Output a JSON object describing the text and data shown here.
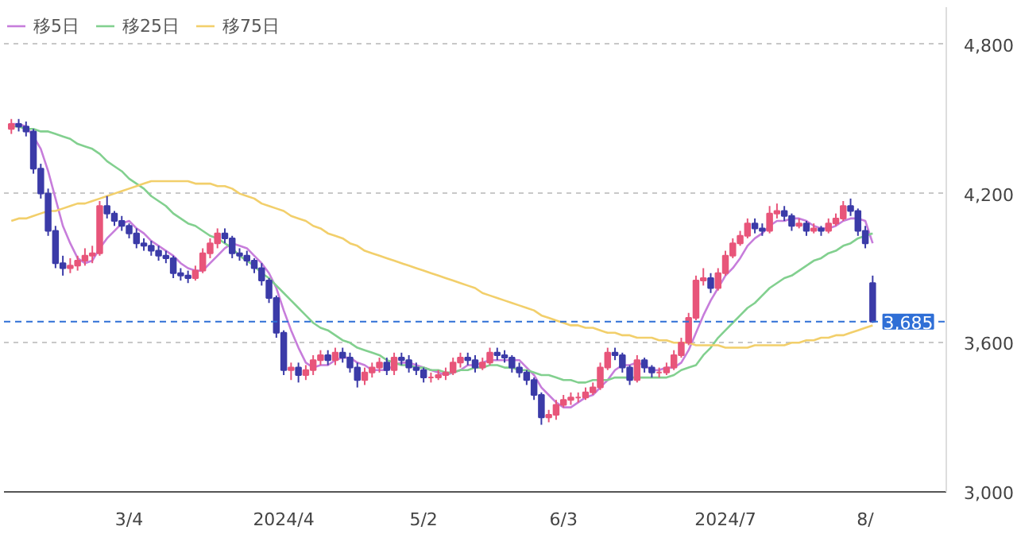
{
  "chart_data": {
    "type": "candlestick",
    "categories": [
      null,
      null,
      null,
      null,
      null,
      null,
      null,
      null,
      null,
      null,
      null,
      null,
      null,
      null,
      null,
      null,
      "3/4",
      null,
      null,
      null,
      null,
      null,
      null,
      null,
      null,
      null,
      null,
      null,
      null,
      null,
      null,
      null,
      null,
      null,
      null,
      null,
      null,
      "2024/4",
      null,
      null,
      null,
      null,
      null,
      null,
      null,
      null,
      null,
      null,
      null,
      null,
      null,
      null,
      null,
      null,
      null,
      null,
      "5/2",
      null,
      null,
      null,
      null,
      null,
      null,
      null,
      null,
      null,
      null,
      null,
      null,
      null,
      null,
      null,
      null,
      null,
      null,
      "6/3",
      null,
      null,
      null,
      null,
      null,
      null,
      null,
      null,
      null,
      null,
      null,
      null,
      null,
      null,
      null,
      null,
      null,
      null,
      null,
      null,
      null,
      "2024/7",
      null,
      null,
      null,
      null,
      null,
      null,
      null,
      null,
      null,
      null,
      null,
      null,
      null,
      null,
      null,
      null,
      null,
      null,
      "8/",
      null
    ],
    "ohlc": [
      [
        4460,
        4500,
        4440,
        4480
      ],
      [
        4480,
        4500,
        4450,
        4470
      ],
      [
        4470,
        4490,
        4430,
        4450
      ],
      [
        4450,
        4460,
        4280,
        4300
      ],
      [
        4300,
        4320,
        4180,
        4200
      ],
      [
        4200,
        4220,
        4030,
        4050
      ],
      [
        4050,
        4070,
        3900,
        3920
      ],
      [
        3920,
        3950,
        3870,
        3900
      ],
      [
        3900,
        3940,
        3880,
        3910
      ],
      [
        3910,
        3950,
        3890,
        3930
      ],
      [
        3930,
        3980,
        3910,
        3950
      ],
      [
        3950,
        3990,
        3920,
        3960
      ],
      [
        3960,
        4170,
        3950,
        4150
      ],
      [
        4150,
        4190,
        4100,
        4120
      ],
      [
        4120,
        4130,
        4070,
        4090
      ],
      [
        4090,
        4110,
        4050,
        4070
      ],
      [
        4070,
        4080,
        4020,
        4040
      ],
      [
        4040,
        4060,
        3980,
        4000
      ],
      [
        4000,
        4020,
        3970,
        3990
      ],
      [
        3990,
        4010,
        3950,
        3970
      ],
      [
        3970,
        3990,
        3930,
        3950
      ],
      [
        3950,
        3970,
        3920,
        3940
      ],
      [
        3940,
        3950,
        3860,
        3880
      ],
      [
        3880,
        3900,
        3850,
        3870
      ],
      [
        3870,
        3890,
        3840,
        3860
      ],
      [
        3860,
        3910,
        3850,
        3890
      ],
      [
        3890,
        3980,
        3880,
        3960
      ],
      [
        3960,
        4020,
        3940,
        4000
      ],
      [
        4000,
        4060,
        3980,
        4040
      ],
      [
        4040,
        4060,
        4000,
        4020
      ],
      [
        4020,
        4030,
        3940,
        3960
      ],
      [
        3960,
        3980,
        3930,
        3950
      ],
      [
        3950,
        3970,
        3910,
        3930
      ],
      [
        3930,
        3940,
        3880,
        3900
      ],
      [
        3900,
        3920,
        3830,
        3850
      ],
      [
        3850,
        3860,
        3760,
        3780
      ],
      [
        3780,
        3790,
        3620,
        3640
      ],
      [
        3640,
        3650,
        3470,
        3490
      ],
      [
        3490,
        3520,
        3450,
        3500
      ],
      [
        3500,
        3520,
        3440,
        3470
      ],
      [
        3470,
        3510,
        3450,
        3490
      ],
      [
        3490,
        3550,
        3470,
        3530
      ],
      [
        3530,
        3570,
        3510,
        3550
      ],
      [
        3550,
        3570,
        3510,
        3530
      ],
      [
        3530,
        3580,
        3510,
        3560
      ],
      [
        3560,
        3580,
        3520,
        3540
      ],
      [
        3540,
        3560,
        3480,
        3500
      ],
      [
        3500,
        3520,
        3420,
        3450
      ],
      [
        3450,
        3500,
        3430,
        3480
      ],
      [
        3480,
        3520,
        3460,
        3500
      ],
      [
        3500,
        3540,
        3480,
        3520
      ],
      [
        3520,
        3540,
        3470,
        3490
      ],
      [
        3490,
        3560,
        3470,
        3540
      ],
      [
        3540,
        3560,
        3510,
        3530
      ],
      [
        3530,
        3550,
        3480,
        3500
      ],
      [
        3500,
        3520,
        3470,
        3490
      ],
      [
        3490,
        3500,
        3440,
        3460
      ],
      [
        3460,
        3480,
        3440,
        3460
      ],
      [
        3460,
        3490,
        3450,
        3470
      ],
      [
        3470,
        3500,
        3450,
        3480
      ],
      [
        3480,
        3540,
        3470,
        3520
      ],
      [
        3520,
        3560,
        3500,
        3540
      ],
      [
        3540,
        3560,
        3510,
        3530
      ],
      [
        3530,
        3550,
        3480,
        3500
      ],
      [
        3500,
        3540,
        3490,
        3520
      ],
      [
        3520,
        3580,
        3510,
        3560
      ],
      [
        3560,
        3580,
        3530,
        3550
      ],
      [
        3550,
        3570,
        3520,
        3540
      ],
      [
        3540,
        3550,
        3480,
        3500
      ],
      [
        3500,
        3520,
        3460,
        3480
      ],
      [
        3480,
        3490,
        3430,
        3450
      ],
      [
        3450,
        3460,
        3370,
        3390
      ],
      [
        3390,
        3400,
        3270,
        3300
      ],
      [
        3300,
        3330,
        3280,
        3310
      ],
      [
        3310,
        3370,
        3290,
        3350
      ],
      [
        3350,
        3390,
        3340,
        3370
      ],
      [
        3370,
        3400,
        3350,
        3380
      ],
      [
        3380,
        3400,
        3360,
        3380
      ],
      [
        3380,
        3420,
        3370,
        3400
      ],
      [
        3400,
        3440,
        3390,
        3420
      ],
      [
        3420,
        3520,
        3410,
        3500
      ],
      [
        3500,
        3580,
        3490,
        3560
      ],
      [
        3560,
        3580,
        3530,
        3550
      ],
      [
        3550,
        3560,
        3480,
        3500
      ],
      [
        3500,
        3510,
        3430,
        3450
      ],
      [
        3450,
        3550,
        3440,
        3530
      ],
      [
        3530,
        3540,
        3480,
        3500
      ],
      [
        3500,
        3510,
        3460,
        3480
      ],
      [
        3480,
        3500,
        3460,
        3480
      ],
      [
        3480,
        3520,
        3470,
        3500
      ],
      [
        3500,
        3570,
        3490,
        3550
      ],
      [
        3550,
        3620,
        3540,
        3600
      ],
      [
        3600,
        3720,
        3590,
        3700
      ],
      [
        3700,
        3870,
        3690,
        3850
      ],
      [
        3850,
        3900,
        3830,
        3860
      ],
      [
        3860,
        3880,
        3800,
        3820
      ],
      [
        3820,
        3900,
        3810,
        3880
      ],
      [
        3880,
        3970,
        3870,
        3950
      ],
      [
        3950,
        4020,
        3940,
        4000
      ],
      [
        4000,
        4050,
        3990,
        4030
      ],
      [
        4030,
        4100,
        4020,
        4080
      ],
      [
        4080,
        4100,
        4040,
        4060
      ],
      [
        4060,
        4080,
        4030,
        4050
      ],
      [
        4050,
        4150,
        4040,
        4120
      ],
      [
        4120,
        4160,
        4100,
        4130
      ],
      [
        4130,
        4150,
        4090,
        4110
      ],
      [
        4110,
        4120,
        4050,
        4070
      ],
      [
        4070,
        4100,
        4060,
        4080
      ],
      [
        4080,
        4090,
        4030,
        4050
      ],
      [
        4050,
        4080,
        4040,
        4060
      ],
      [
        4060,
        4070,
        4030,
        4050
      ],
      [
        4050,
        4100,
        4040,
        4080
      ],
      [
        4080,
        4120,
        4070,
        4100
      ],
      [
        4100,
        4170,
        4090,
        4150
      ],
      [
        4150,
        4180,
        4110,
        4130
      ],
      [
        4130,
        4140,
        4030,
        4050
      ],
      [
        4050,
        4070,
        3980,
        4000
      ],
      [
        3840,
        3870,
        3680,
        3685
      ]
    ],
    "series": [
      {
        "name": "移5日",
        "type": "line",
        "color": "#c77ddb",
        "values": [
          4480,
          4480,
          4470,
          4430,
          4380,
          4290,
          4180,
          4070,
          4000,
          3940,
          3920,
          3930,
          3980,
          4020,
          4050,
          4080,
          4090,
          4060,
          4040,
          4010,
          3990,
          3970,
          3950,
          3920,
          3900,
          3890,
          3890,
          3920,
          3950,
          3980,
          4000,
          3990,
          3980,
          3950,
          3920,
          3880,
          3820,
          3730,
          3650,
          3580,
          3520,
          3500,
          3510,
          3510,
          3530,
          3540,
          3540,
          3520,
          3510,
          3490,
          3490,
          3490,
          3510,
          3520,
          3520,
          3510,
          3500,
          3490,
          3480,
          3470,
          3480,
          3490,
          3510,
          3510,
          3520,
          3530,
          3530,
          3530,
          3530,
          3530,
          3500,
          3470,
          3420,
          3390,
          3360,
          3340,
          3340,
          3360,
          3380,
          3390,
          3420,
          3450,
          3490,
          3510,
          3510,
          3520,
          3510,
          3490,
          3490,
          3500,
          3500,
          3520,
          3570,
          3640,
          3710,
          3770,
          3820,
          3870,
          3900,
          3940,
          3990,
          4020,
          4040,
          4070,
          4090,
          4090,
          4100,
          4100,
          4090,
          4070,
          4060,
          4060,
          4070,
          4090,
          4100,
          4100,
          4090,
          4000
        ]
      },
      {
        "name": "移25日",
        "type": "line",
        "color": "#82d08f",
        "values": [
          4470,
          4470,
          4460,
          4460,
          4450,
          4450,
          4440,
          4430,
          4420,
          4400,
          4390,
          4380,
          4360,
          4330,
          4310,
          4290,
          4260,
          4240,
          4220,
          4190,
          4170,
          4150,
          4120,
          4100,
          4080,
          4070,
          4050,
          4030,
          4020,
          4000,
          3980,
          3950,
          3930,
          3910,
          3880,
          3860,
          3830,
          3800,
          3770,
          3740,
          3710,
          3680,
          3660,
          3650,
          3630,
          3610,
          3600,
          3580,
          3570,
          3560,
          3550,
          3530,
          3520,
          3510,
          3510,
          3500,
          3500,
          3490,
          3490,
          3480,
          3480,
          3490,
          3490,
          3500,
          3500,
          3510,
          3510,
          3500,
          3500,
          3490,
          3490,
          3480,
          3470,
          3470,
          3460,
          3450,
          3450,
          3440,
          3440,
          3450,
          3450,
          3450,
          3460,
          3460,
          3460,
          3460,
          3460,
          3460,
          3460,
          3460,
          3470,
          3490,
          3500,
          3510,
          3550,
          3580,
          3620,
          3650,
          3680,
          3710,
          3740,
          3760,
          3790,
          3820,
          3840,
          3860,
          3870,
          3890,
          3910,
          3930,
          3940,
          3960,
          3970,
          3990,
          4000,
          4020,
          4030,
          4040
        ]
      },
      {
        "name": "移75日",
        "type": "line",
        "color": "#f2cf6b",
        "values": [
          4090,
          4100,
          4100,
          4110,
          4120,
          4130,
          4130,
          4140,
          4150,
          4160,
          4160,
          4170,
          4180,
          4190,
          4200,
          4210,
          4220,
          4230,
          4240,
          4250,
          4250,
          4250,
          4250,
          4250,
          4250,
          4240,
          4240,
          4240,
          4230,
          4230,
          4220,
          4200,
          4190,
          4180,
          4160,
          4150,
          4140,
          4130,
          4110,
          4100,
          4090,
          4070,
          4060,
          4040,
          4030,
          4020,
          4000,
          3990,
          3970,
          3960,
          3950,
          3940,
          3930,
          3920,
          3910,
          3900,
          3890,
          3880,
          3870,
          3860,
          3850,
          3840,
          3830,
          3820,
          3800,
          3790,
          3780,
          3770,
          3760,
          3750,
          3740,
          3730,
          3710,
          3700,
          3690,
          3680,
          3670,
          3670,
          3660,
          3660,
          3650,
          3640,
          3640,
          3630,
          3630,
          3620,
          3620,
          3620,
          3610,
          3610,
          3600,
          3600,
          3600,
          3590,
          3590,
          3590,
          3590,
          3580,
          3580,
          3580,
          3580,
          3590,
          3590,
          3590,
          3590,
          3590,
          3600,
          3600,
          3610,
          3610,
          3620,
          3620,
          3630,
          3630,
          3640,
          3650,
          3660,
          3670
        ]
      }
    ],
    "ylim": [
      3000,
      4950
    ],
    "yticks": [
      {
        "value": 3000,
        "label": "3,000"
      },
      {
        "value": 3600,
        "label": "3,600"
      },
      {
        "value": 4200,
        "label": "4,200"
      },
      {
        "value": 4800,
        "label": "4,800"
      }
    ],
    "grid": "y",
    "legend": "top left",
    "ref_lines": [
      {
        "axis": "y",
        "value": 3685,
        "label": "3,685",
        "color": "#2f6fd6",
        "line_style": "dashed"
      }
    ]
  }
}
